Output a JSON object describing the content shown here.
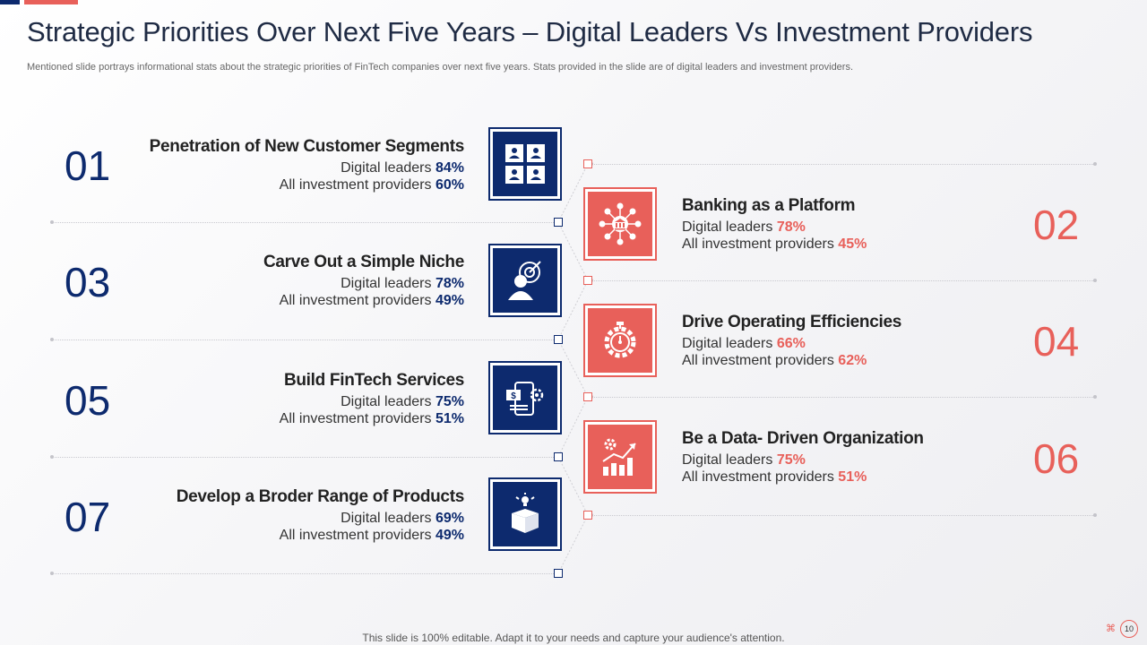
{
  "title": "Strategic Priorities Over Next Five Years – Digital Leaders Vs Investment Providers",
  "subtitle": "Mentioned slide portrays informational stats about the strategic priorities of FinTech companies over next five years. Stats provided in the slide are of digital leaders and investment providers.",
  "stat_labels": {
    "digital": "Digital leaders",
    "investment": "All investment  providers"
  },
  "left_items": [
    {
      "number": "01",
      "title": "Penetration of New Customer Segments",
      "digital": "84%",
      "investment": "60%",
      "icon": "customer-segments-icon"
    },
    {
      "number": "03",
      "title": "Carve Out a Simple Niche",
      "digital": "78%",
      "investment": "49%",
      "icon": "target-user-icon"
    },
    {
      "number": "05",
      "title": "Build FinTech Services",
      "digital": "75%",
      "investment": "51%",
      "icon": "fintech-services-icon"
    },
    {
      "number": "07",
      "title": "Develop a Broder Range of Products",
      "digital": "69%",
      "investment": "49%",
      "icon": "product-box-icon"
    }
  ],
  "right_items": [
    {
      "number": "02",
      "title": "Banking as a Platform",
      "digital": "78%",
      "investment": "45%",
      "icon": "banking-network-icon"
    },
    {
      "number": "04",
      "title": "Drive Operating Efficiencies",
      "digital": "66%",
      "investment": "62%",
      "icon": "efficiency-timer-icon"
    },
    {
      "number": "06",
      "title": "Be a Data- Driven Organization",
      "digital": "75%",
      "investment": "51%",
      "icon": "data-growth-chart-icon"
    }
  ],
  "footer": "This slide is 100% editable. Adapt it to your needs and capture your audience's attention.",
  "page_number": "10",
  "colors": {
    "primary": "#0d2a6e",
    "accent": "#e8605a"
  }
}
